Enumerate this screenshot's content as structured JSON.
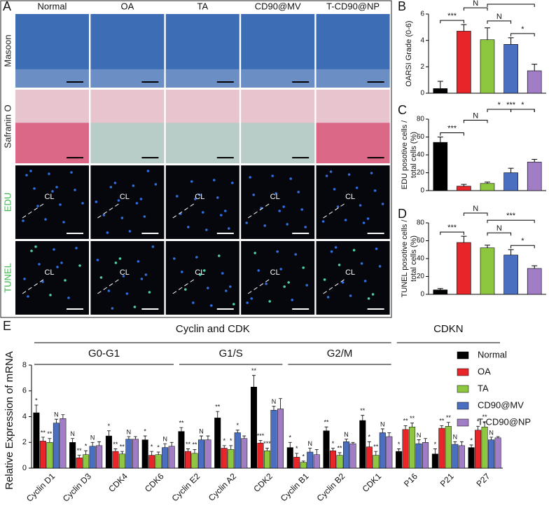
{
  "panel_a": {
    "letter": "A",
    "columns": [
      "Normal",
      "OA",
      "TA",
      "CD90@MV",
      "T-CD90@NP"
    ],
    "rows": [
      "Masoon",
      "Safranin O",
      "EDU",
      "TUNEL"
    ],
    "cl_label": "CL"
  },
  "chart_data": [
    {
      "type": "bar",
      "letter": "B",
      "y_label": [
        "OARSI Grade (0-6)"
      ],
      "categories": [
        null,
        null,
        null,
        null,
        null
      ],
      "colors": [
        "#000000",
        "#e8262a",
        "#8dc63f",
        "#4a6fc0",
        "#a07dc4"
      ],
      "values": [
        0.35,
        4.7,
        4.05,
        3.7,
        1.7
      ],
      "errors": [
        0.55,
        0.5,
        0.9,
        0.5,
        0.5
      ],
      "ylim": [
        0,
        6
      ],
      "yticks": [
        0,
        2,
        4,
        6
      ],
      "brackets": [
        {
          "between": [
            0,
            1
          ],
          "label": "***"
        },
        {
          "between": [
            3,
            4
          ],
          "label": "*"
        },
        {
          "between": [
            2,
            3
          ],
          "label": "N"
        },
        {
          "between": [
            1,
            2
          ],
          "label": "N"
        },
        {
          "between": [
            2,
            4
          ],
          "label": "*"
        }
      ]
    },
    {
      "type": "bar",
      "letter": "C",
      "y_label": [
        "EDU posotive cells /",
        "total cells (%)"
      ],
      "categories": [
        null,
        null,
        null,
        null,
        null
      ],
      "colors": [
        "#000000",
        "#e8262a",
        "#8dc63f",
        "#4a6fc0",
        "#a07dc4"
      ],
      "values": [
        54,
        5,
        8,
        20,
        32
      ],
      "errors": [
        6,
        2,
        1.5,
        5,
        3
      ],
      "ylim": [
        0,
        80
      ],
      "yticks": [
        0,
        20,
        40,
        60,
        80
      ],
      "brackets": [
        {
          "between": [
            0,
            1
          ],
          "label": "***"
        },
        {
          "between": [
            1,
            2
          ],
          "label": "N"
        },
        {
          "between": [
            2,
            3
          ],
          "label": "*"
        },
        {
          "between": [
            3,
            4
          ],
          "label": "*"
        },
        {
          "between": [
            2,
            4
          ],
          "label": "***"
        }
      ]
    },
    {
      "type": "bar",
      "letter": "D",
      "y_label": [
        "TUNEL posotive cells /",
        "total cells (%)"
      ],
      "categories": [
        null,
        null,
        null,
        null,
        null
      ],
      "colors": [
        "#000000",
        "#e8262a",
        "#8dc63f",
        "#4a6fc0",
        "#a07dc4"
      ],
      "values": [
        5,
        58,
        52,
        44,
        29
      ],
      "errors": [
        1.5,
        7,
        3,
        6,
        3
      ],
      "ylim": [
        0,
        80
      ],
      "yticks": [
        0,
        20,
        40,
        60,
        80
      ],
      "brackets": [
        {
          "between": [
            0,
            1
          ],
          "label": "***"
        },
        {
          "between": [
            3,
            4
          ],
          "label": "*"
        },
        {
          "between": [
            2,
            3
          ],
          "label": "N"
        },
        {
          "between": [
            2,
            4
          ],
          "label": "***"
        },
        {
          "between": [
            1,
            2
          ],
          "label": "N"
        }
      ]
    },
    {
      "type": "grouped_bar",
      "letter": "E",
      "y_label": "Relative Expression of mRNA",
      "categories": [
        "Cyclin D1",
        "Cyclin D3",
        "CDK4",
        "CDK6",
        "Cyclin E2",
        "Cyclin A2",
        "CDK2",
        "Cyclin B1",
        "Cyclin B2",
        "CDK1",
        "P16",
        "P21",
        "P27"
      ],
      "ylim": [
        0,
        8
      ],
      "yticks": [
        0,
        2,
        4,
        6,
        8
      ],
      "groups": [
        {
          "label": "Cyclin and CDK",
          "span": [
            0,
            9
          ]
        },
        {
          "label": "CDKN",
          "span": [
            10,
            12
          ]
        }
      ],
      "subgroups": [
        {
          "label": "G0-G1",
          "span": [
            0,
            3
          ]
        },
        {
          "label": "G1/S",
          "span": [
            4,
            6
          ]
        },
        {
          "label": "G2/M",
          "span": [
            7,
            9
          ]
        }
      ],
      "series": [
        {
          "name": "Normal",
          "color": "#000000",
          "values": [
            4.3,
            2.0,
            2.5,
            2.2,
            2.85,
            3.9,
            6.3,
            1.6,
            2.9,
            3.7,
            1.3,
            1.1,
            1.6
          ],
          "errors": [
            0.6,
            0.3,
            0.4,
            0.3,
            0.3,
            0.5,
            0.9,
            0.4,
            0.3,
            0.4,
            0.2,
            0.4,
            0.2
          ],
          "marks": [
            "*",
            "N",
            "*",
            "*",
            "**",
            "**",
            "**",
            "*",
            "**",
            "**",
            "*",
            "*",
            "*"
          ]
        },
        {
          "name": "OA",
          "color": "#e8262a",
          "values": [
            2.1,
            0.8,
            1.3,
            1.0,
            1.3,
            1.55,
            1.95,
            0.85,
            1.35,
            1.65,
            3.0,
            3.1,
            2.95
          ],
          "errors": [
            0.3,
            0.2,
            0.2,
            0.3,
            0.2,
            0.2,
            0.2,
            0.3,
            0.2,
            0.4,
            0.3,
            0.2,
            0.3
          ],
          "marks": [
            "**",
            "**",
            "**",
            "*",
            "**",
            "*",
            "***",
            "*",
            "*",
            "*",
            "**",
            "**",
            "*"
          ]
        },
        {
          "name": "TA",
          "color": "#8dc63f",
          "values": [
            2.0,
            1.05,
            1.1,
            1.05,
            1.15,
            1.45,
            1.35,
            0.45,
            1.0,
            1.0,
            3.2,
            3.25,
            3.2
          ],
          "errors": [
            0.3,
            0.3,
            0.2,
            0.2,
            0.3,
            0.3,
            0.2,
            0.1,
            0.2,
            0.3,
            0.3,
            0.3,
            0.4
          ],
          "marks": [
            "**",
            "*",
            "**",
            "*",
            "**",
            "*",
            "***",
            "*",
            "**",
            "**",
            "**",
            "**",
            "**"
          ]
        },
        {
          "name": "CD90@MV",
          "color": "#4a6fc0",
          "values": [
            3.5,
            1.7,
            2.25,
            1.6,
            2.2,
            2.75,
            4.5,
            1.25,
            2.05,
            2.75,
            1.9,
            1.85,
            2.2
          ],
          "errors": [
            0.3,
            0.3,
            0.2,
            0.3,
            0.3,
            0.2,
            0.3,
            0.3,
            0.2,
            0.3,
            0.3,
            0.2,
            0.2
          ],
          "marks": [
            "N",
            "N",
            "N",
            "N",
            "N",
            "*",
            "N",
            "N",
            "N",
            "N",
            "N",
            "N",
            "N"
          ]
        },
        {
          "name": "T-CD90@NP",
          "color": "#a07dc4",
          "values": [
            3.85,
            1.75,
            2.25,
            1.7,
            2.2,
            2.3,
            4.6,
            1.05,
            1.9,
            2.45,
            2.0,
            1.75,
            2.35
          ],
          "errors": [
            0.3,
            0.3,
            0.2,
            0.3,
            0.3,
            0.2,
            0.8,
            0.4,
            0.1,
            0.3,
            0.3,
            0.3,
            0.1
          ]
        }
      ]
    }
  ]
}
